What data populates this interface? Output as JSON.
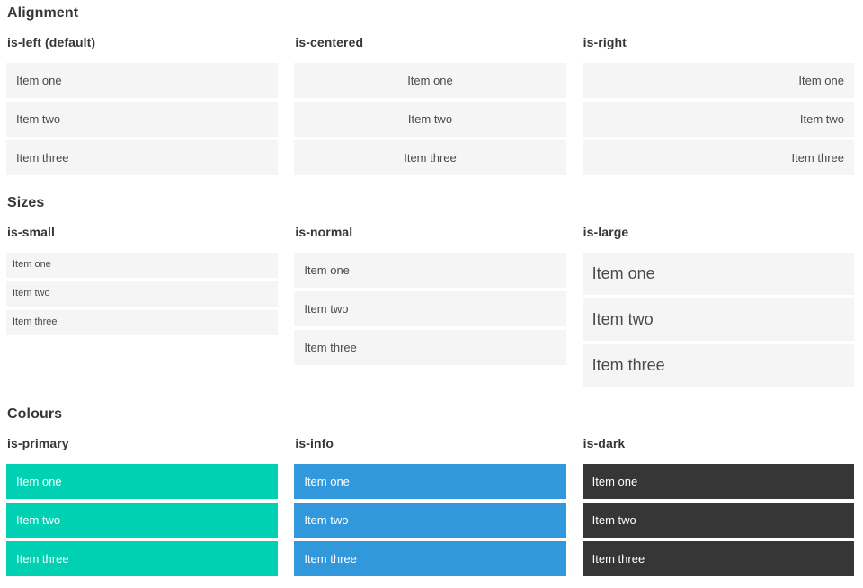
{
  "sections": [
    {
      "title": "Alignment",
      "columns": [
        {
          "subtitle": "is-left (default)",
          "items": [
            "Item one",
            "Item two",
            "Item three"
          ]
        },
        {
          "subtitle": "is-centered",
          "items": [
            "Item one",
            "Item two",
            "Item three"
          ]
        },
        {
          "subtitle": "is-right",
          "items": [
            "Item one",
            "Item two",
            "Item three"
          ]
        }
      ]
    },
    {
      "title": "Sizes",
      "columns": [
        {
          "subtitle": "is-small",
          "items": [
            "Item one",
            "Item two",
            "Item three"
          ]
        },
        {
          "subtitle": "is-normal",
          "items": [
            "Item one",
            "Item two",
            "Item three"
          ]
        },
        {
          "subtitle": "is-large",
          "items": [
            "Item one",
            "Item two",
            "Item three"
          ]
        }
      ]
    },
    {
      "title": "Colours",
      "columns": [
        {
          "subtitle": "is-primary",
          "items": [
            "Item one",
            "Item two",
            "Item three"
          ]
        },
        {
          "subtitle": "is-info",
          "items": [
            "Item one",
            "Item two",
            "Item three"
          ]
        },
        {
          "subtitle": "is-dark",
          "items": [
            "Item one",
            "Item two",
            "Item three"
          ]
        }
      ]
    }
  ],
  "colors": {
    "primary": "#00d1b2",
    "info": "#3298dc",
    "dark": "#363636",
    "item_bg": "#f5f5f5",
    "item_text": "#4a4a4a",
    "heading_text": "#363636"
  }
}
